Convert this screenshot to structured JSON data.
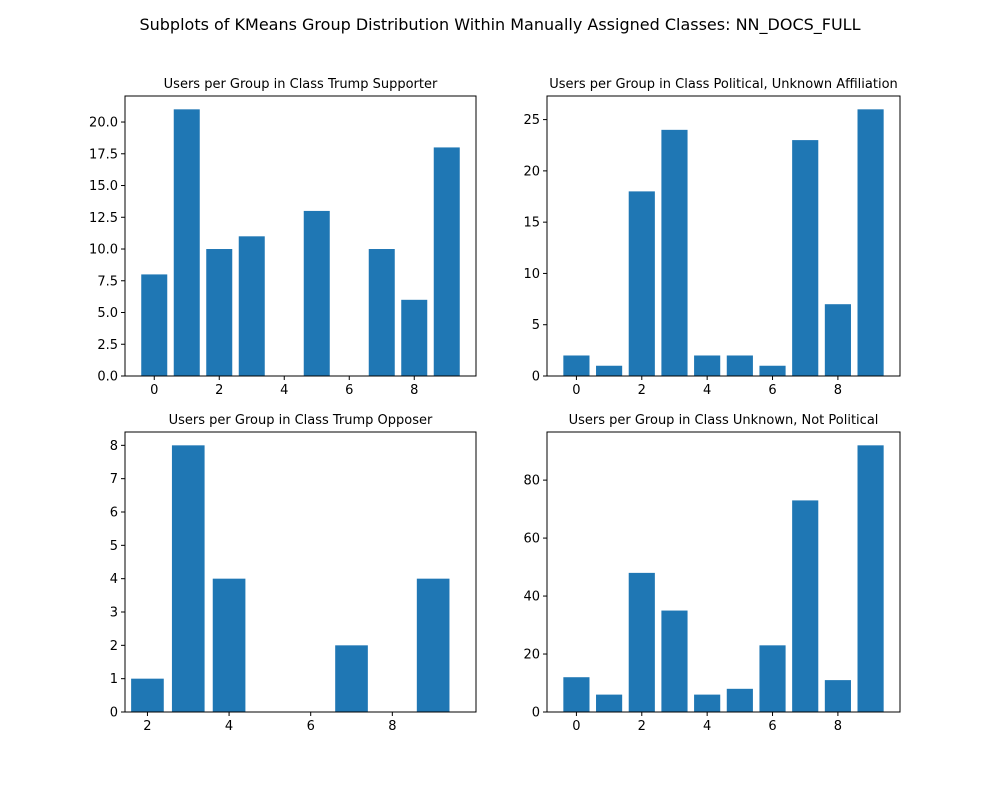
{
  "figure": {
    "title": "Subplots of KMeans Group Distribution Within Manually Assigned Classes: NN_DOCS_FULL"
  },
  "colors": {
    "bar": "#1f77b4"
  },
  "chart_data": [
    {
      "type": "bar",
      "title": "Users per Group in Class Trump Supporter",
      "x": [
        0,
        1,
        2,
        3,
        5,
        7,
        8,
        9
      ],
      "values": [
        8,
        21,
        10,
        11,
        13,
        10,
        6,
        18
      ],
      "xlim": [
        -0.9,
        9.9
      ],
      "ylim": [
        0,
        22.05
      ],
      "xticks": [
        0,
        2,
        4,
        6,
        8
      ],
      "yticks": [
        0,
        2.5,
        5,
        7.5,
        10,
        12.5,
        15,
        17.5,
        20
      ],
      "xtick_labels": [
        "0",
        "2",
        "4",
        "6",
        "8"
      ],
      "ytick_labels": [
        "0.0",
        "2.5",
        "5.0",
        "7.5",
        "10.0",
        "12.5",
        "15.0",
        "17.5",
        "20.0"
      ],
      "grid": false
    },
    {
      "type": "bar",
      "title": "Users per Group in Class Political, Unknown Affiliation",
      "x": [
        0,
        1,
        2,
        3,
        4,
        5,
        6,
        7,
        8,
        9
      ],
      "values": [
        2,
        1,
        18,
        24,
        2,
        2,
        1,
        23,
        7,
        26
      ],
      "xlim": [
        -0.9,
        9.9
      ],
      "ylim": [
        0,
        27.3
      ],
      "xticks": [
        0,
        2,
        4,
        6,
        8
      ],
      "yticks": [
        0,
        5,
        10,
        15,
        20,
        25
      ],
      "xtick_labels": [
        "0",
        "2",
        "4",
        "6",
        "8"
      ],
      "ytick_labels": [
        "0",
        "5",
        "10",
        "15",
        "20",
        "25"
      ],
      "grid": false
    },
    {
      "type": "bar",
      "title": "Users per Group in Class Trump Opposer",
      "x": [
        2,
        3,
        4,
        7,
        9
      ],
      "values": [
        1,
        8,
        4,
        2,
        4
      ],
      "xlim": [
        1.45,
        10.05
      ],
      "ylim": [
        0,
        8.4
      ],
      "xticks": [
        2,
        4,
        6,
        8
      ],
      "yticks": [
        0,
        1,
        2,
        3,
        4,
        5,
        6,
        7,
        8
      ],
      "xtick_labels": [
        "2",
        "4",
        "6",
        "8"
      ],
      "ytick_labels": [
        "0",
        "1",
        "2",
        "3",
        "4",
        "5",
        "6",
        "7",
        "8"
      ],
      "grid": false
    },
    {
      "type": "bar",
      "title": "Users per Group in Class Unknown, Not Political",
      "x": [
        0,
        1,
        2,
        3,
        4,
        5,
        6,
        7,
        8,
        9
      ],
      "values": [
        12,
        6,
        48,
        35,
        6,
        8,
        23,
        73,
        11,
        92
      ],
      "xlim": [
        -0.9,
        9.9
      ],
      "ylim": [
        0,
        96.6
      ],
      "xticks": [
        0,
        2,
        4,
        6,
        8
      ],
      "yticks": [
        0,
        20,
        40,
        60,
        80
      ],
      "xtick_labels": [
        "0",
        "2",
        "4",
        "6",
        "8"
      ],
      "ytick_labels": [
        "0",
        "20",
        "40",
        "60",
        "80"
      ],
      "grid": false
    }
  ]
}
